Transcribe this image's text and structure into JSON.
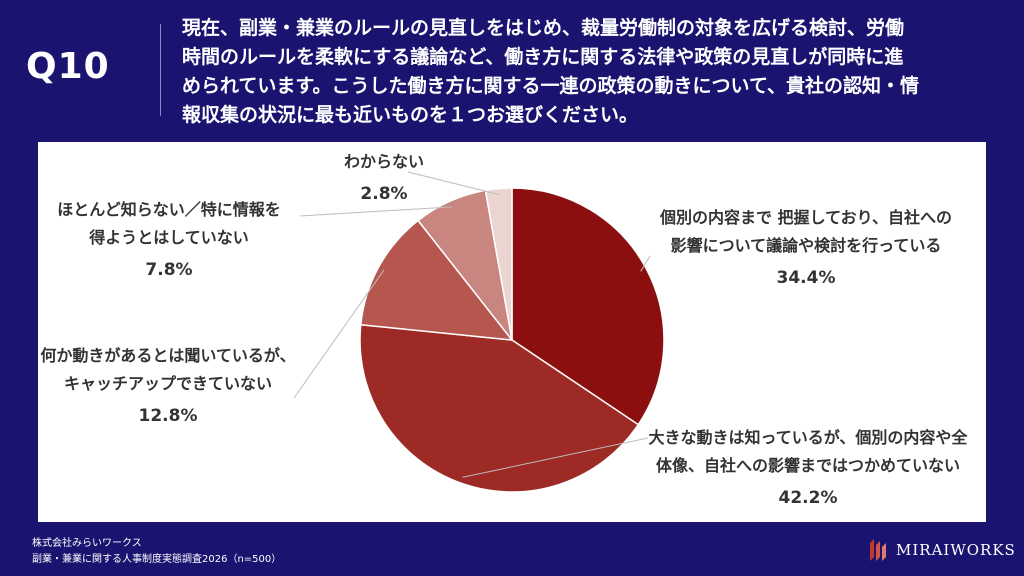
{
  "header": {
    "question_id": "Q10",
    "question_lines": [
      "現在、副業・兼業のルールの見直しをはじめ、裁量労働制の対象を広げる検討、労働",
      "時間のルールを柔軟にする議論など、働き方に関する法律や政策の見直しが同時に進",
      "められています。こうした働き方に関する一連の政策の動きについて、貴社の認知・情",
      "報収集の状況に最も近いものを１つお選びください。"
    ]
  },
  "chart_data": {
    "type": "pie",
    "start_angle_deg": 0,
    "direction": "clockwise",
    "slices": [
      {
        "label_lines": [
          "個別の内容まで 把握しており、自社への",
          "影響について議論や検討を行っている"
        ],
        "value": 34.4,
        "percent_text": "34.4%",
        "color": "#8b0f0f"
      },
      {
        "label_lines": [
          "大きな動きは知っているが、個別の内容や全",
          "体像、自社への影響まではつかめていない"
        ],
        "value": 42.2,
        "percent_text": "42.2%",
        "color": "#9e2a26"
      },
      {
        "label_lines": [
          "何か動きがあるとは聞いているが、",
          "キャッチアップできていない"
        ],
        "value": 12.8,
        "percent_text": "12.8%",
        "color": "#b5564f"
      },
      {
        "label_lines": [
          "ほとんど知らない／特に情報を",
          "得ようとはしていない"
        ],
        "value": 7.8,
        "percent_text": "7.8%",
        "color": "#c98580"
      },
      {
        "label_lines": [
          "わからない"
        ],
        "value": 2.8,
        "percent_text": "2.8%",
        "color": "#ecd4d1"
      }
    ]
  },
  "footer": {
    "company": "株式会社みらいワークス",
    "source": "副業・兼業に関する人事制度実態調査2026（n=500）"
  },
  "logo": {
    "text": "MIRAIWORKS",
    "icon": "miraiworks-logo-icon"
  }
}
